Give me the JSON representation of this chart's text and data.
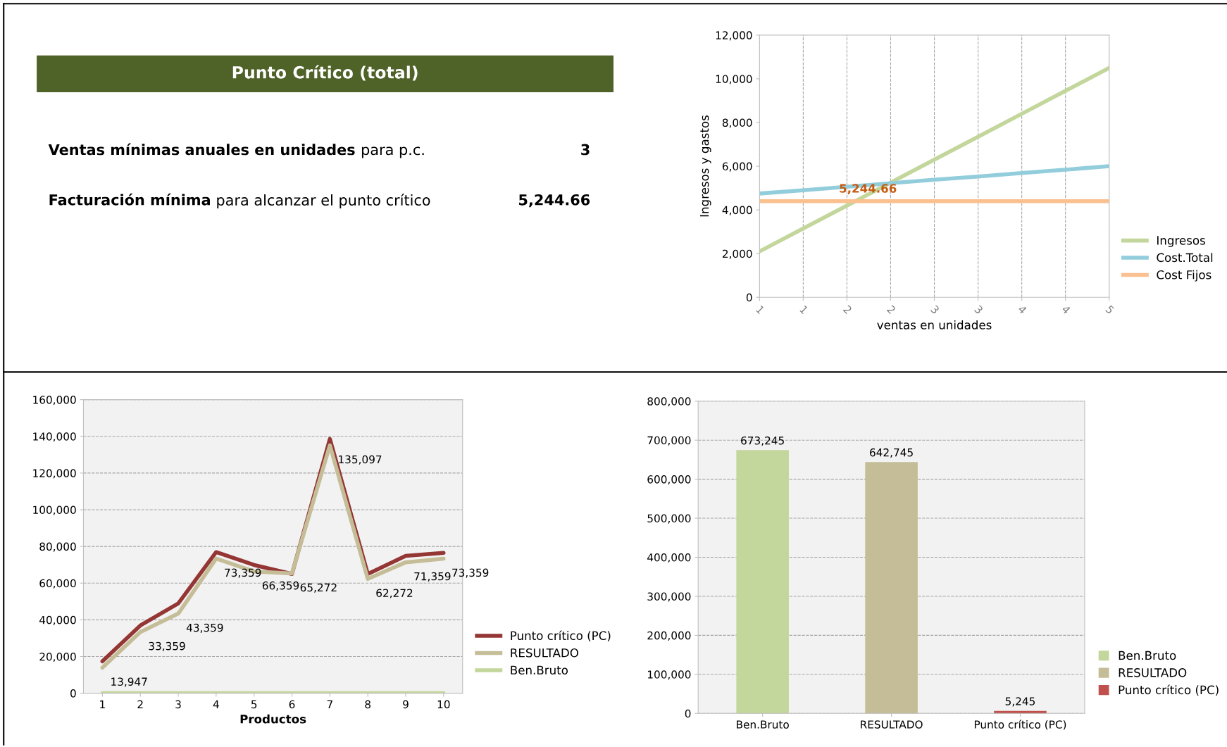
{
  "chart_data": [
    {
      "type": "other",
      "title": "Punto Crítico (total)",
      "annotations": [
        "Ventas mínimas anuales en unidades",
        "para p.c.",
        "3",
        "Facturación mínima",
        "para alcanzar el punto crítico",
        "5,244.66"
      ]
    },
    {
      "type": "line",
      "xlabel": "ventas en unidades",
      "ylabel": "Ingresos y gastos",
      "categories": [
        "1",
        "1",
        "2",
        "2",
        "3",
        "3",
        "4",
        "4",
        "5"
      ],
      "series": [
        {
          "name": "Ingresos",
          "color": "#c3d69b",
          "values": [
            2100,
            3150,
            4200,
            5250,
            6300,
            7350,
            8400,
            9450,
            10500
          ]
        },
        {
          "name": "Cost.Total",
          "color": "#92cddc",
          "values": [
            4750,
            4900,
            5060,
            5220,
            5380,
            5530,
            5690,
            5840,
            6000
          ]
        },
        {
          "name": "Cost Fijos",
          "color": "#fac090",
          "values": [
            4400,
            4400,
            4400,
            4400,
            4400,
            4400,
            4400,
            4400,
            4400
          ]
        }
      ],
      "ylim": [
        0,
        12000
      ],
      "yticks": [
        0,
        {
          "value": 2000,
          "label": "2,000"
        },
        {
          "value": 4000,
          "label": "4,000"
        },
        {
          "value": 6000,
          "label": "6,000"
        },
        {
          "value": 8000,
          "label": "8,000"
        },
        {
          "value": 10000,
          "label": "10,000"
        },
        {
          "value": 12000,
          "label": "12,000"
        }
      ],
      "annotations": [
        "5,244.66"
      ],
      "grid": "x",
      "legend": "right"
    },
    {
      "type": "line",
      "xlabel": "Productos",
      "categories": [
        "1",
        "2",
        "3",
        "4",
        "5",
        "6",
        "7",
        "8",
        "9",
        "10"
      ],
      "series": [
        {
          "name": "Punto crítico (PC)",
          "color": "#943634",
          "values": [
            17400,
            36900,
            48900,
            76900,
            69900,
            65000,
            138600,
            65000,
            74900,
            76500
          ]
        },
        {
          "name": "RESULTADO",
          "color": "#c4bd97",
          "values": [
            13947,
            33359,
            43359,
            73359,
            66359,
            65272,
            135097,
            62272,
            71359,
            73359
          ],
          "value_labels": [
            "13,947",
            "33,359",
            "43,359",
            "73,359",
            "66,359",
            "65,272",
            "135,097",
            "62,272",
            "71,359",
            "73,359"
          ]
        },
        {
          "name": "Ben.Bruto",
          "color": "#c3d69b",
          "values": [
            0,
            0,
            0,
            0,
            0,
            0,
            0,
            0,
            0,
            0
          ]
        }
      ],
      "ylim": [
        0,
        160000
      ],
      "yticks": [
        0,
        {
          "value": 20000,
          "label": "20,000"
        },
        {
          "value": 40000,
          "label": "40,000"
        },
        {
          "value": 60000,
          "label": "60,000"
        },
        {
          "value": 80000,
          "label": "80,000"
        },
        {
          "value": 100000,
          "label": "100,000"
        },
        {
          "value": 120000,
          "label": "120,000"
        },
        {
          "value": 140000,
          "label": "140,000"
        },
        {
          "value": 160000,
          "label": "160,000"
        }
      ],
      "grid": "y",
      "legend": "right"
    },
    {
      "type": "bar",
      "stacked": true,
      "categories": [
        "Ben.Bruto",
        "RESULTADO",
        "Punto crítico (PC)"
      ],
      "series": [
        {
          "name": "Ben.Bruto",
          "color": "#c3d69b",
          "values": [
            673245,
            null,
            null
          ],
          "value_labels": [
            "673,245",
            null,
            null
          ]
        },
        {
          "name": "RESULTADO",
          "color": "#c4bd97",
          "values": [
            null,
            642745,
            null
          ],
          "value_labels": [
            null,
            "642,745",
            null
          ]
        },
        {
          "name": "Punto crítico (PC)",
          "color": "#c0504d",
          "values": [
            null,
            null,
            5245
          ],
          "value_labels": [
            null,
            null,
            "5,245"
          ]
        }
      ],
      "ylim": [
        0,
        800000
      ],
      "yticks": [
        0,
        {
          "value": 100000,
          "label": "100,000"
        },
        {
          "value": 200000,
          "label": "200,000"
        },
        {
          "value": 300000,
          "label": "300,000"
        },
        {
          "value": 400000,
          "label": "400,000"
        },
        {
          "value": 500000,
          "label": "500,000"
        },
        {
          "value": 600000,
          "label": "600,000"
        },
        {
          "value": 700000,
          "label": "700,000"
        },
        {
          "value": 800000,
          "label": "800,000"
        }
      ],
      "grid": "y",
      "legend": "right"
    }
  ]
}
